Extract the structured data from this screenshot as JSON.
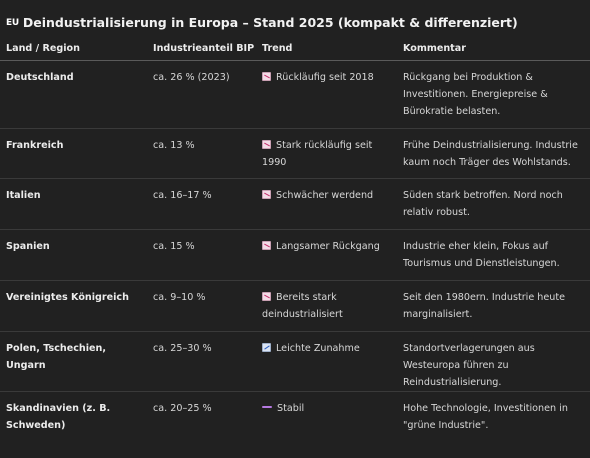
{
  "title": {
    "flag": "EU",
    "text": "Deindustrialisierung in Europa – Stand 2025 (kompakt & differenziert)"
  },
  "table": {
    "headers": [
      "Land / Region",
      "Industrieanteil BIP",
      "Trend",
      "Kommentar"
    ],
    "rows": [
      {
        "region": "Deutschland",
        "share": "ca. 26 % (2023)",
        "trend_icon": "chart-decreasing-icon",
        "trend": "Rückläufig seit 2018",
        "comment": "Rückgang bei Produktion & Investitionen. Energiepreise & Bürokratie belasten."
      },
      {
        "region": "Frankreich",
        "share": "ca. 13 %",
        "trend_icon": "chart-decreasing-icon",
        "trend": "Stark rückläufig seit 1990",
        "comment": "Frühe Deindustrialisierung. Industrie kaum noch Träger des Wohlstands."
      },
      {
        "region": "Italien",
        "share": "ca. 16–17 %",
        "trend_icon": "chart-decreasing-icon",
        "trend": "Schwächer werdend",
        "comment": "Süden stark betroffen. Nord noch relativ robust."
      },
      {
        "region": "Spanien",
        "share": "ca. 15 %",
        "trend_icon": "chart-decreasing-icon",
        "trend": "Langsamer Rückgang",
        "comment": "Industrie eher klein, Fokus auf Tourismus und Dienstleistungen."
      },
      {
        "region": "Vereinigtes Königreich",
        "share": "ca. 9–10 %",
        "trend_icon": "chart-decreasing-icon",
        "trend": "Bereits stark deindustrialisiert",
        "comment": "Seit den 1980ern. Industrie heute marginalisiert."
      },
      {
        "region": "Polen, Tschechien, Ungarn",
        "share": "ca. 25–30 %",
        "trend_icon": "chart-increasing-icon",
        "trend": "Leichte Zunahme",
        "comment": "Standortverlagerungen aus Westeuropa führen zu Reindustrialisierung."
      },
      {
        "region": "Skandinavien (z. B. Schweden)",
        "share": "ca. 20–25 %",
        "trend_icon": "flat-line-icon",
        "trend": "Stabil",
        "comment": "Hohe Technologie, Investitionen in \"grüne Industrie\"."
      }
    ]
  },
  "colors": {
    "background": "#212121",
    "text": "#ececec",
    "trend_down_icon": "#c22d6a",
    "trend_up_icon": "#2d5fc2",
    "trend_flat_icon": "#b57ae0"
  }
}
